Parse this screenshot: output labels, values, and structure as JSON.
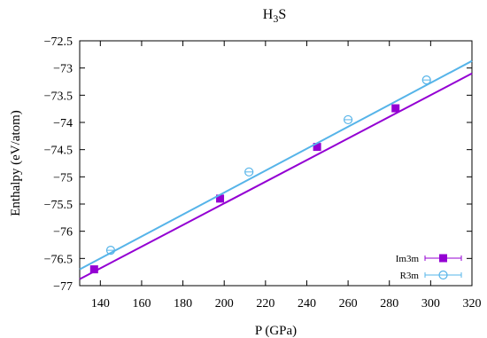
{
  "chart_data": {
    "type": "line",
    "title": "H",
    "title_sub": "3",
    "title_tail": "S",
    "xlabel": "P (GPa)",
    "ylabel": "Enthalpy (eV/atom)",
    "xlim": [
      130,
      320
    ],
    "ylim": [
      -77,
      -72.5
    ],
    "xticks": [
      140,
      160,
      180,
      200,
      220,
      240,
      260,
      280,
      300,
      320
    ],
    "yticks": [
      -77,
      -76.5,
      -76,
      -75.5,
      -75,
      -74.5,
      -74,
      -73.5,
      -73,
      -72.5
    ],
    "grid": false,
    "legend_position": "bottom-right",
    "series": [
      {
        "name": "Im3m",
        "color": "#9400d3",
        "marker": "filled-square",
        "fit_line": [
          [
            130,
            -76.88
          ],
          [
            320,
            -73.1
          ]
        ],
        "points": [
          [
            137,
            -76.7
          ],
          [
            198,
            -75.4
          ],
          [
            245,
            -74.45
          ],
          [
            283,
            -73.74
          ]
        ]
      },
      {
        "name": "R3m",
        "color": "#56b4e9",
        "marker": "open-circle",
        "fit_line": [
          [
            130,
            -76.7
          ],
          [
            320,
            -72.87
          ]
        ],
        "points": [
          [
            145,
            -76.35
          ],
          [
            212,
            -74.91
          ],
          [
            260,
            -73.95
          ],
          [
            298,
            -73.22
          ]
        ]
      }
    ]
  }
}
